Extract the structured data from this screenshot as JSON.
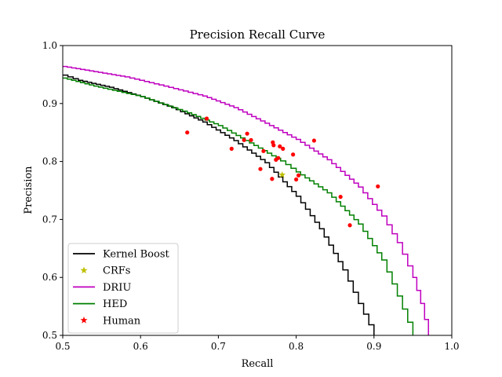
{
  "chart_data": {
    "type": "line",
    "title": "Precision Recall Curve",
    "xlabel": "Recall",
    "ylabel": "Precision",
    "xlim": [
      0.5,
      1.0
    ],
    "ylim": [
      0.5,
      1.0
    ],
    "xticks": [
      "0.5",
      "0.6",
      "0.7",
      "0.8",
      "0.9",
      "1.0"
    ],
    "yticks": [
      "0.5",
      "0.6",
      "0.7",
      "0.8",
      "0.9",
      "1.0"
    ],
    "grid": false,
    "legend_position": "lower-left",
    "series": [
      {
        "name": "Kernel Boost",
        "color": "#000000",
        "style": "step-line",
        "x": [
          0.5,
          0.52,
          0.56,
          0.6,
          0.64,
          0.68,
          0.72,
          0.76,
          0.8,
          0.83,
          0.86,
          0.88,
          0.9
        ],
        "y": [
          0.949,
          0.94,
          0.928,
          0.912,
          0.893,
          0.868,
          0.836,
          0.798,
          0.74,
          0.684,
          0.613,
          0.555,
          0.5
        ]
      },
      {
        "name": "CRFs",
        "color": "#bfbf00",
        "style": "marker-star",
        "x": [
          0.782
        ],
        "y": [
          0.777
        ]
      },
      {
        "name": "DRIU",
        "color": "#bf00bf",
        "style": "step-line",
        "x": [
          0.5,
          0.54,
          0.58,
          0.63,
          0.68,
          0.72,
          0.76,
          0.8,
          0.84,
          0.88,
          0.91,
          0.93,
          0.95,
          0.96,
          0.97
        ],
        "y": [
          0.964,
          0.955,
          0.946,
          0.93,
          0.913,
          0.893,
          0.866,
          0.838,
          0.803,
          0.756,
          0.706,
          0.66,
          0.6,
          0.555,
          0.5
        ]
      },
      {
        "name": "HED",
        "color": "#008000",
        "style": "step-line",
        "x": [
          0.5,
          0.54,
          0.6,
          0.66,
          0.7,
          0.74,
          0.78,
          0.8,
          0.84,
          0.88,
          0.91,
          0.93,
          0.95
        ],
        "y": [
          0.944,
          0.93,
          0.912,
          0.884,
          0.862,
          0.832,
          0.801,
          0.782,
          0.746,
          0.692,
          0.63,
          0.568,
          0.5
        ]
      },
      {
        "name": "Human",
        "color": "#ff0000",
        "style": "marker-dot",
        "x": [
          0.66,
          0.685,
          0.717,
          0.733,
          0.737,
          0.742,
          0.754,
          0.758,
          0.769,
          0.77,
          0.771,
          0.774,
          0.777,
          0.779,
          0.783,
          0.796,
          0.8,
          0.803,
          0.823,
          0.857,
          0.869,
          0.905
        ],
        "y": [
          0.85,
          0.874,
          0.822,
          0.837,
          0.848,
          0.837,
          0.787,
          0.818,
          0.77,
          0.833,
          0.828,
          0.803,
          0.806,
          0.826,
          0.822,
          0.812,
          0.769,
          0.776,
          0.836,
          0.739,
          0.69,
          0.757
        ]
      }
    ]
  }
}
